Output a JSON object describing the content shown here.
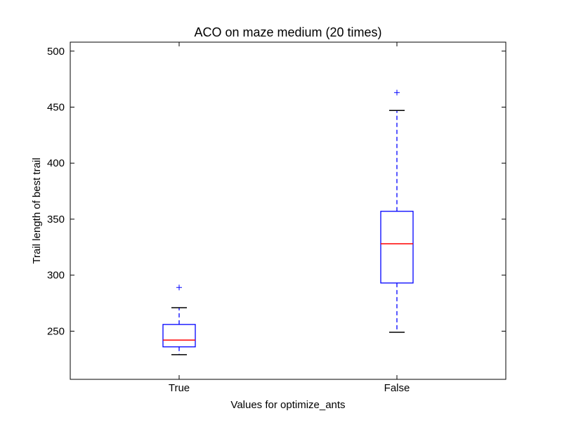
{
  "chart_data": {
    "type": "box",
    "title": "ACO on maze medium (20 times)",
    "xlabel": "Values for optimize_ants",
    "ylabel": "Trail length of best trail",
    "categories": [
      "True",
      "False"
    ],
    "ylim": [
      207,
      508
    ],
    "yticks": [
      250,
      300,
      350,
      400,
      450,
      500
    ],
    "grid": false,
    "boxes": [
      {
        "category": "True",
        "whisker_low": 229,
        "q1": 236,
        "median": 242,
        "q3": 256,
        "whisker_high": 271,
        "outliers": [
          289
        ]
      },
      {
        "category": "False",
        "whisker_low": 249,
        "q1": 293,
        "median": 328,
        "q3": 357,
        "whisker_high": 447,
        "outliers": [
          463
        ]
      }
    ],
    "colors": {
      "box": "#0000ff",
      "median": "#ff0000",
      "whisker": "#0000ff",
      "cap": "#000000",
      "outlier": "#0000ff",
      "frame": "#000000"
    }
  }
}
